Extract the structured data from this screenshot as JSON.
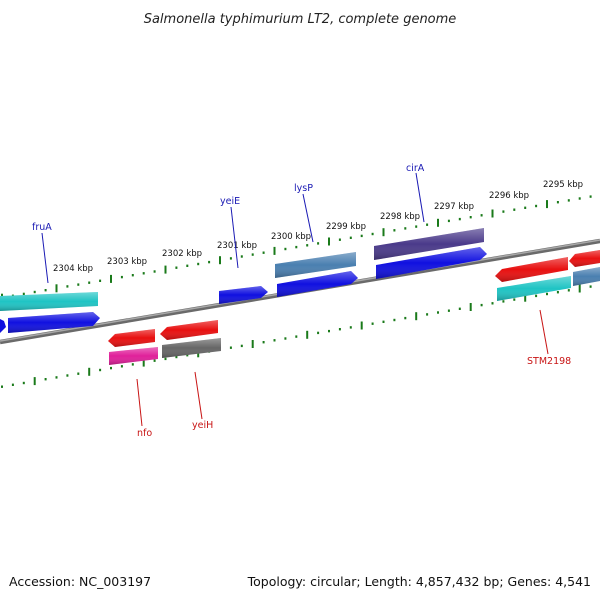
{
  "title": "Salmonella typhimurium LT2, complete genome",
  "footer": {
    "accession": "Accession: NC_003197",
    "summary": "Topology: circular; Length: 4,857,432 bp; Genes: 4,541"
  },
  "colors": {
    "background": "#ffffff",
    "backbone": "#8c8c8c",
    "ticks": "#1a7a1a",
    "label_forward": "#1a1ab4",
    "label_reverse": "#c81414"
  },
  "ruler_labels": [
    "2295 kbp",
    "2296 kbp",
    "2297 kbp",
    "2298 kbp",
    "2299 kbp",
    "2300 kbp",
    "2301 kbp",
    "2302 kbp",
    "2303 kbp",
    "2304 kbp"
  ],
  "genes": [
    {
      "label": "fruA",
      "strand": "forward"
    },
    {
      "label": "yeiE",
      "strand": "forward"
    },
    {
      "label": "lysP",
      "strand": "forward"
    },
    {
      "label": "cirA",
      "strand": "forward"
    },
    {
      "label": "nfo",
      "strand": "reverse"
    },
    {
      "label": "yeiH",
      "strand": "reverse"
    },
    {
      "label": "STM2198",
      "strand": "reverse"
    }
  ],
  "feature_colors": {
    "cyan": "#1fc4c4",
    "blue": "#1010e0",
    "steel": "#4a7fb0",
    "purple": "#4a3a8a",
    "red": "#e81010",
    "pink": "#e0209a",
    "gray": "#666666"
  }
}
